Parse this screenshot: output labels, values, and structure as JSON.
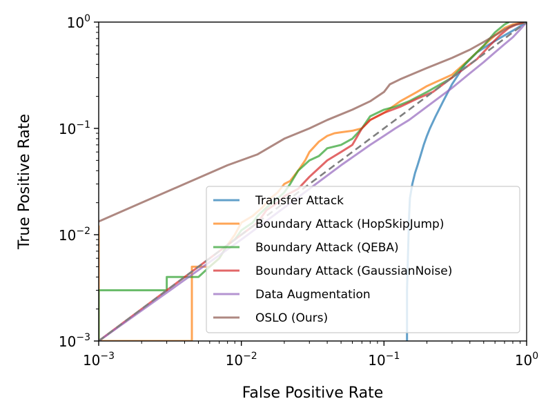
{
  "chart_data": {
    "type": "line",
    "xlabel": "False Positive Rate",
    "ylabel": "True Positive Rate",
    "xscale": "log",
    "yscale": "log",
    "xlim": [
      0.001,
      1
    ],
    "ylim": [
      0.001,
      1
    ],
    "x_ticks": [
      {
        "value": 0.001,
        "base": "10",
        "exp": "−3"
      },
      {
        "value": 0.01,
        "base": "10",
        "exp": "−2"
      },
      {
        "value": 0.1,
        "base": "10",
        "exp": "−1"
      },
      {
        "value": 1,
        "base": "10",
        "exp": "0"
      }
    ],
    "y_ticks": [
      {
        "value": 0.001,
        "base": "10",
        "exp": "−3"
      },
      {
        "value": 0.01,
        "base": "10",
        "exp": "−2"
      },
      {
        "value": 0.1,
        "base": "10",
        "exp": "−1"
      },
      {
        "value": 1,
        "base": "10",
        "exp": "0"
      }
    ],
    "grid": false,
    "legend_position": "lower-right",
    "series": [
      {
        "name": "Transfer Attack",
        "color": "#1f77b4",
        "points": [
          [
            0.145,
            0.001
          ],
          [
            0.145,
            0.003
          ],
          [
            0.148,
            0.008
          ],
          [
            0.15,
            0.015
          ],
          [
            0.152,
            0.022
          ],
          [
            0.158,
            0.03
          ],
          [
            0.165,
            0.038
          ],
          [
            0.172,
            0.045
          ],
          [
            0.18,
            0.055
          ],
          [
            0.19,
            0.07
          ],
          [
            0.2,
            0.085
          ],
          [
            0.21,
            0.1
          ],
          [
            0.23,
            0.13
          ],
          [
            0.26,
            0.18
          ],
          [
            0.3,
            0.26
          ],
          [
            0.37,
            0.4
          ],
          [
            0.45,
            0.52
          ],
          [
            0.55,
            0.62
          ],
          [
            0.7,
            0.75
          ],
          [
            0.85,
            0.87
          ],
          [
            1,
            1
          ]
        ]
      },
      {
        "name": "Boundary Attack (HopSkipJump)",
        "color": "#ff7f0e",
        "points": [
          [
            0.001,
            0.001
          ],
          [
            0.001,
            0.012
          ],
          [
            0.001,
            0.001
          ],
          [
            0.0045,
            0.001
          ],
          [
            0.0045,
            0.005
          ],
          [
            0.006,
            0.005
          ],
          [
            0.007,
            0.006
          ],
          [
            0.008,
            0.008
          ],
          [
            0.009,
            0.01
          ],
          [
            0.01,
            0.013
          ],
          [
            0.012,
            0.015
          ],
          [
            0.014,
            0.018
          ],
          [
            0.016,
            0.022
          ],
          [
            0.018,
            0.025
          ],
          [
            0.02,
            0.03
          ],
          [
            0.022,
            0.032
          ],
          [
            0.025,
            0.04
          ],
          [
            0.028,
            0.05
          ],
          [
            0.03,
            0.06
          ],
          [
            0.035,
            0.075
          ],
          [
            0.04,
            0.085
          ],
          [
            0.045,
            0.09
          ],
          [
            0.05,
            0.092
          ],
          [
            0.06,
            0.095
          ],
          [
            0.07,
            0.1
          ],
          [
            0.08,
            0.12
          ],
          [
            0.1,
            0.14
          ],
          [
            0.13,
            0.18
          ],
          [
            0.17,
            0.22
          ],
          [
            0.2,
            0.25
          ],
          [
            0.3,
            0.32
          ],
          [
            0.4,
            0.45
          ],
          [
            0.5,
            0.6
          ],
          [
            0.6,
            0.75
          ],
          [
            0.7,
            0.88
          ],
          [
            0.8,
            0.95
          ],
          [
            1,
            1
          ]
        ]
      },
      {
        "name": "Boundary Attack (QEBA)",
        "color": "#2ca02c",
        "points": [
          [
            0.001,
            0.001
          ],
          [
            0.001,
            0.003
          ],
          [
            0.003,
            0.003
          ],
          [
            0.003,
            0.004
          ],
          [
            0.005,
            0.004
          ],
          [
            0.006,
            0.005
          ],
          [
            0.007,
            0.006
          ],
          [
            0.008,
            0.008
          ],
          [
            0.009,
            0.009
          ],
          [
            0.01,
            0.011
          ],
          [
            0.012,
            0.013
          ],
          [
            0.013,
            0.015
          ],
          [
            0.015,
            0.018
          ],
          [
            0.018,
            0.022
          ],
          [
            0.02,
            0.025
          ],
          [
            0.022,
            0.03
          ],
          [
            0.025,
            0.04
          ],
          [
            0.03,
            0.05
          ],
          [
            0.035,
            0.055
          ],
          [
            0.04,
            0.065
          ],
          [
            0.05,
            0.07
          ],
          [
            0.06,
            0.08
          ],
          [
            0.07,
            0.1
          ],
          [
            0.08,
            0.13
          ],
          [
            0.1,
            0.15
          ],
          [
            0.12,
            0.16
          ],
          [
            0.15,
            0.18
          ],
          [
            0.2,
            0.22
          ],
          [
            0.3,
            0.3
          ],
          [
            0.4,
            0.45
          ],
          [
            0.5,
            0.6
          ],
          [
            0.6,
            0.8
          ],
          [
            0.7,
            0.95
          ],
          [
            0.75,
            1
          ]
        ]
      },
      {
        "name": "Boundary Attack (GaussianNoise)",
        "color": "#d62728",
        "points": [
          [
            0.001,
            0.001
          ],
          [
            0.005,
            0.005
          ],
          [
            0.01,
            0.01
          ],
          [
            0.013,
            0.013
          ],
          [
            0.015,
            0.017
          ],
          [
            0.018,
            0.02
          ],
          [
            0.02,
            0.023
          ],
          [
            0.025,
            0.027
          ],
          [
            0.03,
            0.035
          ],
          [
            0.04,
            0.05
          ],
          [
            0.05,
            0.06
          ],
          [
            0.06,
            0.07
          ],
          [
            0.07,
            0.1
          ],
          [
            0.08,
            0.12
          ],
          [
            0.1,
            0.14
          ],
          [
            0.13,
            0.16
          ],
          [
            0.17,
            0.19
          ],
          [
            0.22,
            0.22
          ],
          [
            0.28,
            0.28
          ],
          [
            0.35,
            0.35
          ],
          [
            0.45,
            0.45
          ],
          [
            0.55,
            0.6
          ],
          [
            0.65,
            0.75
          ],
          [
            0.75,
            0.88
          ],
          [
            0.85,
            0.95
          ],
          [
            1,
            1
          ]
        ]
      },
      {
        "name": "Data Augmentation",
        "color": "#9467bd",
        "points": [
          [
            0.001,
            0.001
          ],
          [
            0.01,
            0.009
          ],
          [
            0.03,
            0.027
          ],
          [
            0.05,
            0.045
          ],
          [
            0.08,
            0.07
          ],
          [
            0.1,
            0.085
          ],
          [
            0.12,
            0.1
          ],
          [
            0.15,
            0.12
          ],
          [
            0.2,
            0.16
          ],
          [
            0.3,
            0.24
          ],
          [
            0.4,
            0.33
          ],
          [
            0.5,
            0.42
          ],
          [
            0.6,
            0.52
          ],
          [
            0.7,
            0.62
          ],
          [
            0.8,
            0.72
          ],
          [
            0.9,
            0.85
          ],
          [
            1,
            1
          ]
        ]
      },
      {
        "name": "OSLO (Ours)",
        "color": "#8c564b",
        "points": [
          [
            0.001,
            0.0133
          ],
          [
            0.002,
            0.02
          ],
          [
            0.004,
            0.03
          ],
          [
            0.008,
            0.045
          ],
          [
            0.013,
            0.057
          ],
          [
            0.02,
            0.08
          ],
          [
            0.03,
            0.1
          ],
          [
            0.04,
            0.12
          ],
          [
            0.06,
            0.15
          ],
          [
            0.08,
            0.18
          ],
          [
            0.1,
            0.22
          ],
          [
            0.11,
            0.26
          ],
          [
            0.13,
            0.29
          ],
          [
            0.2,
            0.37
          ],
          [
            0.3,
            0.46
          ],
          [
            0.4,
            0.55
          ],
          [
            0.5,
            0.65
          ],
          [
            0.6,
            0.75
          ],
          [
            0.7,
            0.85
          ],
          [
            0.8,
            0.93
          ],
          [
            1,
            1
          ]
        ]
      }
    ],
    "reference_line": {
      "color": "#7f7f7f",
      "points": [
        [
          0.001,
          0.001
        ],
        [
          1,
          1
        ]
      ]
    }
  }
}
